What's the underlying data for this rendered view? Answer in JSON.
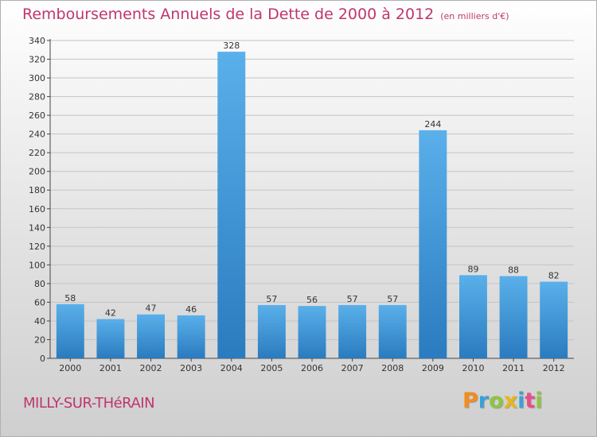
{
  "header": {
    "title": "Remboursements Annuels de la Dette de 2000 à 2012",
    "unit": "(en milliers d'€)"
  },
  "footer": {
    "commune": "MILLY-SUR-THéRAIN",
    "logo_letters": [
      "P",
      "r",
      "o",
      "x",
      "i",
      "t",
      "i"
    ],
    "logo_colors": [
      "#f28c1e",
      "#3aa0d8",
      "#8cc63f",
      "#e8b71a",
      "#3aa0d8",
      "#e84e8a",
      "#8cc63f"
    ]
  },
  "chart_data": {
    "type": "bar",
    "categories": [
      "2000",
      "2001",
      "2002",
      "2003",
      "2004",
      "2005",
      "2006",
      "2007",
      "2008",
      "2009",
      "2010",
      "2011",
      "2012"
    ],
    "values": [
      58,
      42,
      47,
      46,
      328,
      57,
      56,
      57,
      57,
      244,
      89,
      88,
      82
    ],
    "ylim": [
      0,
      340
    ],
    "yticks": [
      0,
      20,
      40,
      60,
      80,
      100,
      120,
      140,
      160,
      180,
      200,
      220,
      240,
      260,
      280,
      300,
      320,
      340
    ],
    "grid": true,
    "bar_color_top": "#5ab0ea",
    "bar_color_bottom": "#2a7bbf"
  }
}
